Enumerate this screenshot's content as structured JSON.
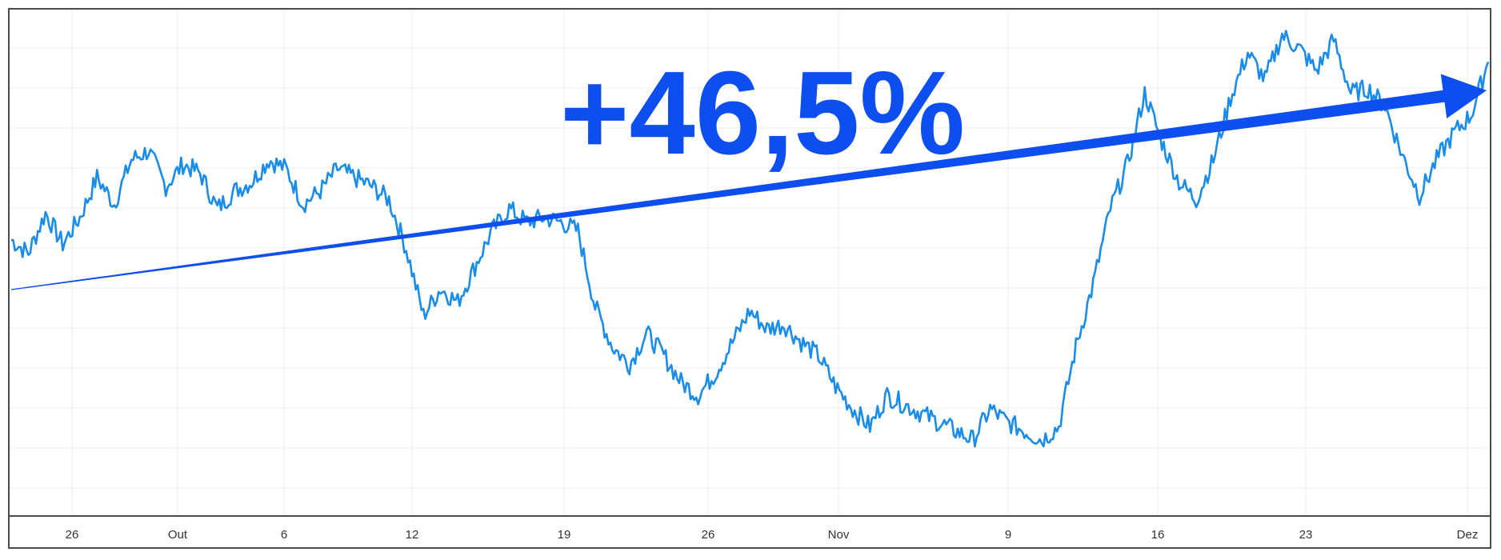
{
  "chart_data": {
    "type": "line",
    "title": "",
    "xlabel": "",
    "ylabel": "",
    "grid": true,
    "legend": "none",
    "x_tick_labels": [
      "26",
      "Out",
      "6",
      "12",
      "19",
      "26",
      "Nov",
      "9",
      "16",
      "23",
      "Dez"
    ],
    "annotation": "+46,5%",
    "colors": {
      "series": "#1a8cea",
      "arrow": "#0d4ef0",
      "frame": "#4a4a4a",
      "grid": "#ececec"
    },
    "series": [
      {
        "values": [
          0.54,
          0.51,
          0.6,
          0.53,
          0.59,
          0.68,
          0.62,
          0.72,
          0.74,
          0.66,
          0.71,
          0.69,
          0.61,
          0.65,
          0.67,
          0.72,
          0.7,
          0.62,
          0.65,
          0.7,
          0.68,
          0.66,
          0.63,
          0.52,
          0.37,
          0.43,
          0.4,
          0.48,
          0.56,
          0.61,
          0.58,
          0.59,
          0.58,
          0.56,
          0.39,
          0.3,
          0.26,
          0.33,
          0.28,
          0.22,
          0.19,
          0.24,
          0.31,
          0.38,
          0.34,
          0.35,
          0.31,
          0.28,
          0.21,
          0.16,
          0.12,
          0.19,
          0.17,
          0.15,
          0.13,
          0.11,
          0.09,
          0.16,
          0.13,
          0.11,
          0.09,
          0.12,
          0.3,
          0.44,
          0.61,
          0.71,
          0.87,
          0.76,
          0.67,
          0.63,
          0.72,
          0.86,
          0.96,
          0.9,
          1.0,
          0.97,
          0.92,
          0.99,
          0.87,
          0.88,
          0.84,
          0.73,
          0.64,
          0.72,
          0.78,
          0.82,
          0.94
        ]
      }
    ]
  }
}
